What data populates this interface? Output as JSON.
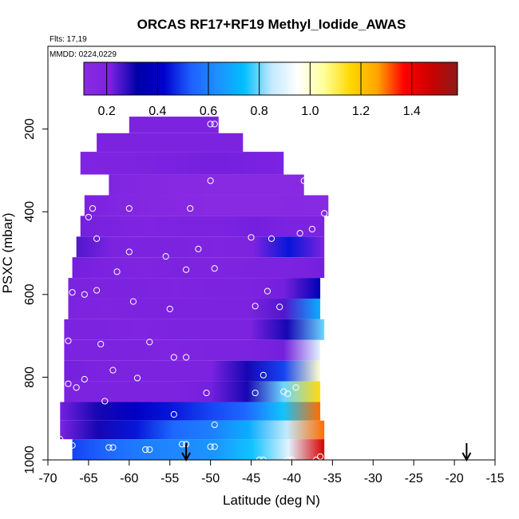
{
  "chart_data": {
    "type": "heatmap",
    "title": "ORCAS RF17+RF19 Methyl_Iodide_AWAS",
    "flights_label": "Flts: 17,19",
    "date_label": "MMDD: 0224,0229",
    "xlabel": "Latitude (deg N)",
    "ylabel": "PSXC (mbar)",
    "xlim": [
      -70,
      -15
    ],
    "ylim": [
      1000,
      0
    ],
    "x_ticks": [
      "-70",
      "-65",
      "-60",
      "-55",
      "-50",
      "-45",
      "-40",
      "-35",
      "-30",
      "-25",
      "-20",
      "-15"
    ],
    "y_ticks": [
      "200",
      "400",
      "600",
      "800",
      "1000"
    ],
    "colorbar": {
      "range": [
        0.11,
        1.58
      ],
      "ticks": [
        "0.2",
        "0.4",
        "0.6",
        "0.8",
        "1.0",
        "1.2",
        "1.4"
      ],
      "colors": [
        "#8a2be2",
        "#7a22e0",
        "#0000a8",
        "#0000cd",
        "#1e5eff",
        "#1e90ff",
        "#00bfff",
        "#bfe8ff",
        "#ffffff",
        "#ffff99",
        "#ffd700",
        "#ffa500",
        "#ff0000",
        "#cc0000",
        "#8b1a1a"
      ]
    },
    "layers": [
      {
        "p_top": 170,
        "p_bot": 210,
        "lat_min": -60,
        "lat_max": -49,
        "values": [
          0.2
        ]
      },
      {
        "p_top": 210,
        "p_bot": 255,
        "lat_min": -64,
        "lat_max": -46,
        "values": [
          0.2
        ]
      },
      {
        "p_top": 255,
        "p_bot": 310,
        "lat_min": -66,
        "lat_max": -41,
        "values": [
          0.18,
          0.2,
          0.22,
          0.2
        ]
      },
      {
        "p_top": 310,
        "p_bot": 360,
        "lat_min": -62.5,
        "lat_max": -38.5,
        "values": [
          0.18,
          0.15,
          0.13,
          0.12,
          0.12,
          0.13
        ]
      },
      {
        "p_top": 360,
        "p_bot": 410,
        "lat_min": -65.5,
        "lat_max": -35.5,
        "values": [
          0.2,
          0.17,
          0.15,
          0.13,
          0.12,
          0.12,
          0.13,
          0.12
        ]
      },
      {
        "p_top": 410,
        "p_bot": 460,
        "lat_min": -66,
        "lat_max": -36,
        "values": [
          0.22,
          0.2,
          0.18,
          0.2,
          0.2,
          0.22,
          0.2,
          0.2
        ]
      },
      {
        "p_top": 460,
        "p_bot": 510,
        "lat_min": -66.5,
        "lat_max": -36,
        "values": [
          0.25,
          0.2,
          0.2,
          0.2,
          0.18,
          0.2,
          0.45,
          0.2
        ]
      },
      {
        "p_top": 510,
        "p_bot": 560,
        "lat_min": -67,
        "lat_max": -36,
        "values": [
          0.22,
          0.2,
          0.18,
          0.2,
          0.18,
          0.2,
          0.2,
          0.22
        ]
      },
      {
        "p_top": 560,
        "p_bot": 610,
        "lat_min": -67.5,
        "lat_max": -36.5,
        "values": [
          0.2,
          0.2,
          0.2,
          0.18,
          0.2,
          0.2,
          0.22,
          0.35
        ]
      },
      {
        "p_top": 610,
        "p_bot": 660,
        "lat_min": -67.5,
        "lat_max": -36.5,
        "values": [
          0.2,
          0.18,
          0.2,
          0.2,
          0.2,
          0.2,
          0.25,
          0.7
        ]
      },
      {
        "p_top": 660,
        "p_bot": 710,
        "lat_min": -68,
        "lat_max": -36,
        "values": [
          0.2,
          0.2,
          0.18,
          0.2,
          0.2,
          0.2,
          0.3,
          0.8
        ]
      },
      {
        "p_top": 710,
        "p_bot": 760,
        "lat_min": -68,
        "lat_max": -36.5,
        "values": [
          0.2,
          0.2,
          0.2,
          0.18,
          0.2,
          0.2,
          0.22,
          0.9
        ]
      },
      {
        "p_top": 760,
        "p_bot": 810,
        "lat_min": -68,
        "lat_max": -36.5,
        "values": [
          0.22,
          0.2,
          0.2,
          0.2,
          0.2,
          0.3,
          0.5,
          1.0
        ]
      },
      {
        "p_top": 810,
        "p_bot": 860,
        "lat_min": -68,
        "lat_max": -36.5,
        "values": [
          0.2,
          0.2,
          0.2,
          0.2,
          0.22,
          0.3,
          0.8,
          1.15
        ]
      },
      {
        "p_top": 860,
        "p_bot": 905,
        "lat_min": -68.5,
        "lat_max": -36.5,
        "values": [
          0.22,
          0.3,
          0.4,
          0.45,
          0.5,
          0.55,
          0.75,
          1.3
        ]
      },
      {
        "p_top": 905,
        "p_bot": 950,
        "lat_min": -68.5,
        "lat_max": -36,
        "values": [
          0.2,
          0.3,
          0.45,
          0.55,
          0.6,
          0.7,
          0.85,
          1.3
        ]
      },
      {
        "p_top": 950,
        "p_bot": 1000,
        "lat_min": -67,
        "lat_max": -36,
        "values": [
          0.5,
          0.55,
          0.6,
          0.62,
          0.65,
          0.75,
          0.9,
          1.45
        ]
      }
    ],
    "samples": [
      {
        "lat": -50,
        "p": 188
      },
      {
        "lat": -49.5,
        "p": 188
      },
      {
        "lat": -48.5,
        "p": 188
      },
      {
        "lat": -47.5,
        "p": 188
      },
      {
        "lat": -50,
        "p": 325
      },
      {
        "lat": -38.5,
        "p": 325
      },
      {
        "lat": -64.5,
        "p": 392
      },
      {
        "lat": -60,
        "p": 392
      },
      {
        "lat": -52.5,
        "p": 392
      },
      {
        "lat": -36,
        "p": 404
      },
      {
        "lat": -65,
        "p": 413
      },
      {
        "lat": -37.5,
        "p": 442
      },
      {
        "lat": -39,
        "p": 452
      },
      {
        "lat": -42.5,
        "p": 465
      },
      {
        "lat": -45,
        "p": 462
      },
      {
        "lat": -64,
        "p": 465
      },
      {
        "lat": -60,
        "p": 497
      },
      {
        "lat": -51.5,
        "p": 490
      },
      {
        "lat": -55.5,
        "p": 508
      },
      {
        "lat": -61.5,
        "p": 545
      },
      {
        "lat": -53,
        "p": 540
      },
      {
        "lat": -49.5,
        "p": 537
      },
      {
        "lat": -67,
        "p": 595
      },
      {
        "lat": -65.5,
        "p": 600
      },
      {
        "lat": -64,
        "p": 590
      },
      {
        "lat": -43,
        "p": 592
      },
      {
        "lat": -59.5,
        "p": 617
      },
      {
        "lat": -55,
        "p": 635
      },
      {
        "lat": -44.5,
        "p": 628
      },
      {
        "lat": -41.5,
        "p": 630
      },
      {
        "lat": -67.5,
        "p": 712
      },
      {
        "lat": -63.5,
        "p": 720
      },
      {
        "lat": -57.5,
        "p": 715
      },
      {
        "lat": -54.5,
        "p": 752
      },
      {
        "lat": -53,
        "p": 752
      },
      {
        "lat": -62,
        "p": 783
      },
      {
        "lat": -43.5,
        "p": 795
      },
      {
        "lat": -65.5,
        "p": 805
      },
      {
        "lat": -59,
        "p": 802
      },
      {
        "lat": -67.5,
        "p": 816
      },
      {
        "lat": -66.5,
        "p": 825
      },
      {
        "lat": -39.5,
        "p": 825
      },
      {
        "lat": -41,
        "p": 835
      },
      {
        "lat": -44.5,
        "p": 838
      },
      {
        "lat": -40.5,
        "p": 840
      },
      {
        "lat": -50.5,
        "p": 838
      },
      {
        "lat": -63,
        "p": 858
      },
      {
        "lat": -54.5,
        "p": 890
      },
      {
        "lat": -49.5,
        "p": 915
      },
      {
        "lat": -68.5,
        "p": 950
      },
      {
        "lat": -67,
        "p": 965
      },
      {
        "lat": -62.5,
        "p": 970
      },
      {
        "lat": -62,
        "p": 970
      },
      {
        "lat": -58,
        "p": 975
      },
      {
        "lat": -57.5,
        "p": 975
      },
      {
        "lat": -53.5,
        "p": 962
      },
      {
        "lat": -53,
        "p": 962
      },
      {
        "lat": -50,
        "p": 968
      },
      {
        "lat": -49.5,
        "p": 968
      },
      {
        "lat": -44,
        "p": 1000
      },
      {
        "lat": -43.5,
        "p": 1000
      },
      {
        "lat": -40.5,
        "p": 1000
      },
      {
        "lat": -40,
        "p": 1000
      },
      {
        "lat": -37,
        "p": 1000
      },
      {
        "lat": -36.5,
        "p": 992
      }
    ],
    "markers": [
      {
        "lat": -53
      },
      {
        "lat": -18.5
      }
    ]
  }
}
